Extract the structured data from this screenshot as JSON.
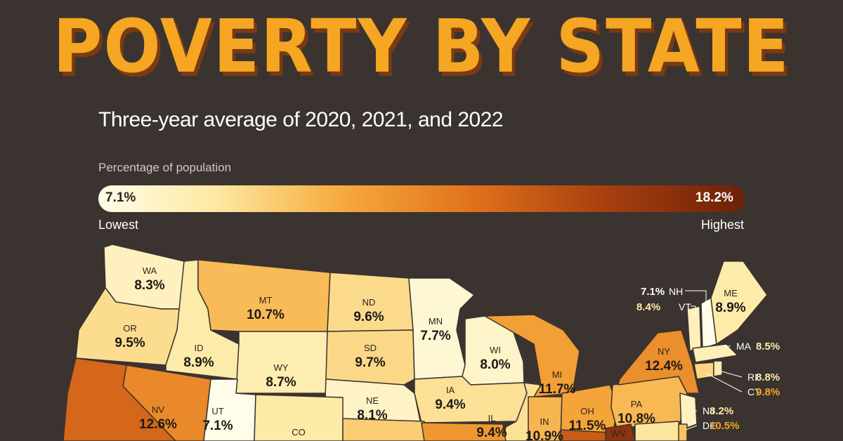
{
  "header": {
    "title": "POVERTY BY STATE",
    "subtitle": "Three-year average of 2020, 2021, and 2022"
  },
  "legend": {
    "label": "Percentage of population",
    "min_value": "7.1%",
    "max_value": "18.2%",
    "min_label": "Lowest",
    "max_label": "Highest"
  },
  "colors": {
    "background": "#3b3330",
    "title": "#f5a623",
    "title_shadow": "#7a3a12",
    "scale_low": "#fffde9",
    "scale_high": "#6c2108",
    "callout_light": "#ffe9a8",
    "callout_orange": "#f5a623"
  },
  "chart_data": {
    "type": "choropleth",
    "title": "POVERTY BY STATE",
    "subtitle": "Three-year average of 2020, 2021, and 2022",
    "scale": {
      "min": 7.1,
      "max": 18.2,
      "unit": "%",
      "label": "Percentage of population"
    },
    "states": [
      {
        "code": "WA",
        "value": "8.3%"
      },
      {
        "code": "OR",
        "value": "9.5%"
      },
      {
        "code": "ID",
        "value": "8.9%"
      },
      {
        "code": "MT",
        "value": "10.7%"
      },
      {
        "code": "WY",
        "value": "8.7%"
      },
      {
        "code": "ND",
        "value": "9.6%"
      },
      {
        "code": "SD",
        "value": "9.7%"
      },
      {
        "code": "NE",
        "value": "8.1%"
      },
      {
        "code": "MN",
        "value": "7.7%"
      },
      {
        "code": "WI",
        "value": "8.0%"
      },
      {
        "code": "IA",
        "value": "9.4%"
      },
      {
        "code": "IL",
        "value": "9.4%"
      },
      {
        "code": "MI",
        "value": "11.7%"
      },
      {
        "code": "IN",
        "value": "10.9%"
      },
      {
        "code": "OH",
        "value": "11.5%"
      },
      {
        "code": "PA",
        "value": "10.8%"
      },
      {
        "code": "NY",
        "value": "12.4%"
      },
      {
        "code": "NV",
        "value": "12.6%"
      },
      {
        "code": "UT",
        "value": "7.1%"
      },
      {
        "code": "CO",
        "value": ""
      },
      {
        "code": "WV",
        "value": ""
      },
      {
        "code": "ME",
        "value": "8.9%"
      },
      {
        "code": "NH",
        "value": "7.1%"
      },
      {
        "code": "VT",
        "value": "8.4%"
      },
      {
        "code": "MA",
        "value": "8.5%"
      },
      {
        "code": "RI",
        "value": "8.8%"
      },
      {
        "code": "CT",
        "value": "9.8%"
      },
      {
        "code": "NJ",
        "value": "8.2%"
      },
      {
        "code": "DE",
        "value": "10.5%"
      }
    ]
  }
}
